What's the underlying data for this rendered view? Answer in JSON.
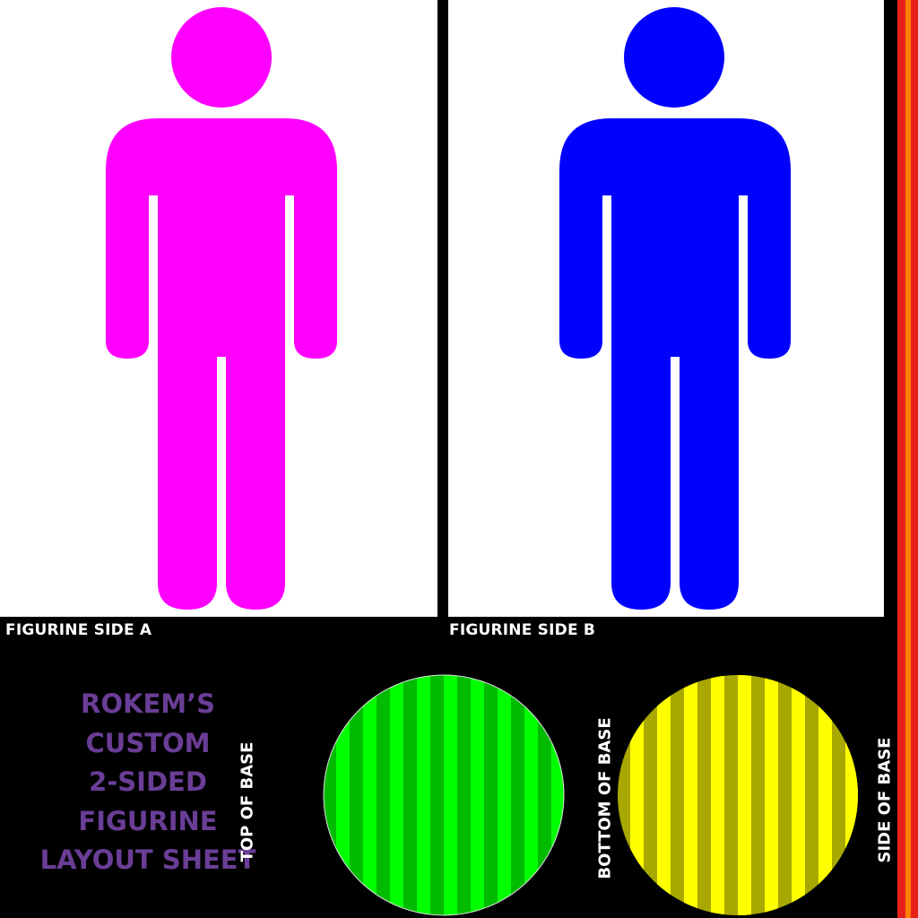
{
  "sheet": {
    "label_side_a": "FIGURINE SIDE A",
    "label_side_b": "FIGURINE SIDE B",
    "title_lines": [
      "ROKEM’S",
      "CUSTOM",
      "2-SIDED",
      "FIGURINE",
      "LAYOUT SHEET"
    ],
    "label_top_of_base": "TOP OF BASE",
    "label_bottom_of_base": "BOTTOM OF BASE",
    "label_side_of_base": "SIDE OF BASE"
  },
  "colors": {
    "figure_a": "#ff00ff",
    "figure_b": "#0000ff",
    "title": "#6a3d96",
    "top_base_dark": "#00bb00",
    "top_base_light": "#00ff00",
    "bottom_base_dark": "#a8a800",
    "bottom_base_light": "#ffff00",
    "side_strip_outer": "#e8201a",
    "side_strip_inner": "#ff8000"
  },
  "icons": {
    "figure_a": "person-icon",
    "figure_b": "person-icon"
  }
}
